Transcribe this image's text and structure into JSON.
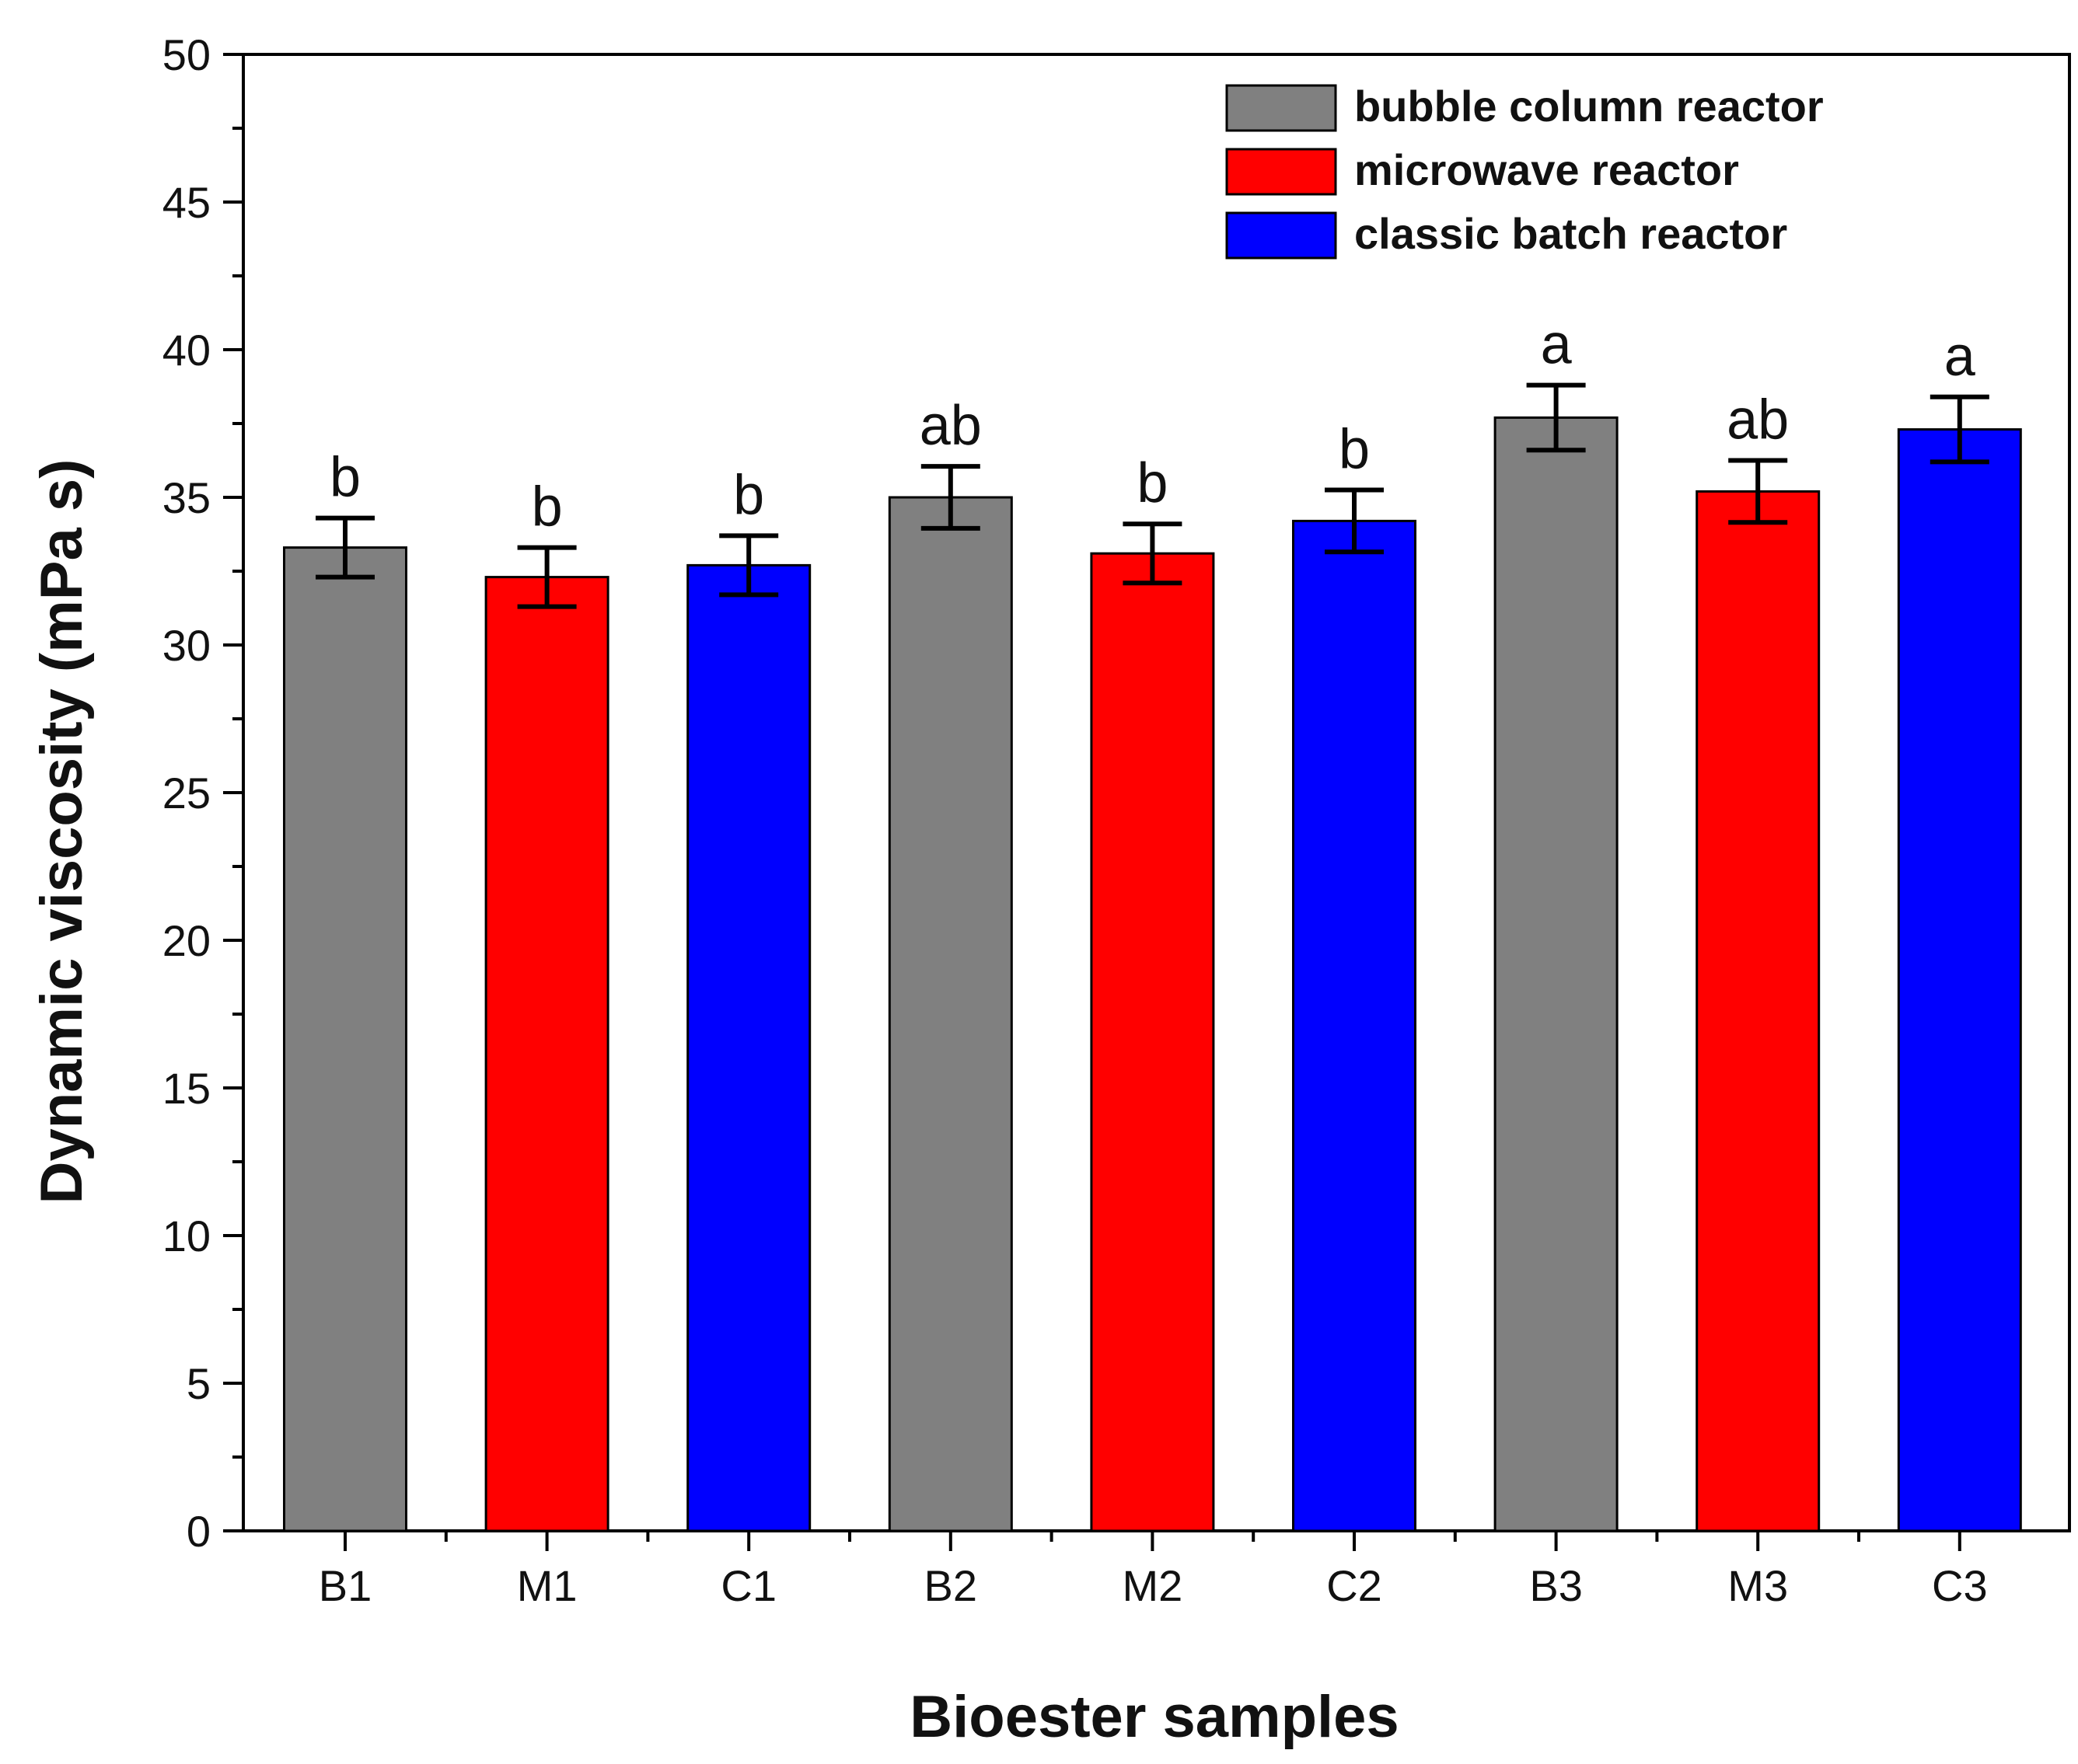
{
  "chart_data": {
    "type": "bar",
    "title": "",
    "xlabel": "Bioester samples",
    "ylabel": "Dynamic viscosity (mPa s)",
    "ylim": [
      0,
      50
    ],
    "yticks": [
      0,
      5,
      10,
      15,
      20,
      25,
      30,
      35,
      40,
      45,
      50
    ],
    "categories": [
      "B1",
      "M1",
      "C1",
      "B2",
      "M2",
      "C2",
      "B3",
      "M3",
      "C3"
    ],
    "values": [
      33.3,
      32.3,
      32.7,
      35.0,
      33.1,
      34.2,
      37.7,
      35.2,
      37.3
    ],
    "errors": [
      1.0,
      1.0,
      1.0,
      1.05,
      1.0,
      1.05,
      1.1,
      1.05,
      1.1
    ],
    "groups": [
      "bubble column reactor",
      "microwave reactor",
      "classic batch reactor",
      "bubble column reactor",
      "microwave reactor",
      "classic batch reactor",
      "bubble column reactor",
      "microwave reactor",
      "classic batch reactor"
    ],
    "significance": [
      "b",
      "b",
      "b",
      "ab",
      "b",
      "b",
      "a",
      "ab",
      "a"
    ],
    "legend": [
      {
        "name": "bubble column reactor",
        "color": "#808080"
      },
      {
        "name": "microwave reactor",
        "color": "#ff0000"
      },
      {
        "name": "classic batch reactor",
        "color": "#0000ff"
      }
    ],
    "legend_position": "top-right"
  }
}
